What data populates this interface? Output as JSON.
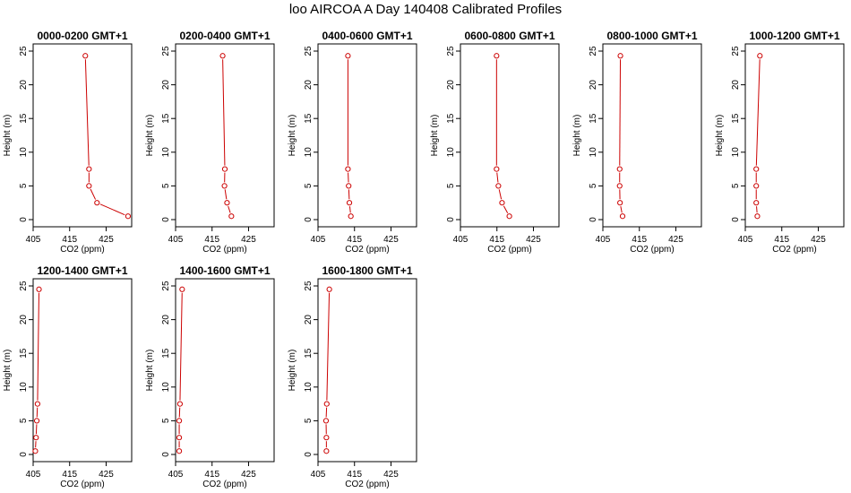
{
  "page_title": "loo AIRCOA A  Day 140408  Calibrated Profiles",
  "colors": {
    "line": "#cc0000",
    "point": "#cc0000",
    "axis": "#000000"
  },
  "chart_data": [
    {
      "type": "line",
      "title": "0000-0200 GMT+1",
      "xlabel": "CO2 (ppm)",
      "ylabel": "Height (m)",
      "xlim": [
        405,
        432
      ],
      "ylim": [
        0,
        25
      ],
      "xticks": [
        405,
        415,
        425
      ],
      "yticks": [
        0,
        5,
        10,
        15,
        20,
        25
      ],
      "x": [
        431.0,
        422.5,
        420.3,
        420.3,
        419.3
      ],
      "y": [
        0.5,
        2.5,
        5,
        7.5,
        24.3
      ]
    },
    {
      "type": "line",
      "title": "0200-0400 GMT+1",
      "xlabel": "CO2 (ppm)",
      "ylabel": "Height (m)",
      "xlim": [
        405,
        432
      ],
      "ylim": [
        0,
        25
      ],
      "xticks": [
        405,
        415,
        425
      ],
      "yticks": [
        0,
        5,
        10,
        15,
        20,
        25
      ],
      "x": [
        420.3,
        419.1,
        418.4,
        418.5,
        417.9
      ],
      "y": [
        0.5,
        2.5,
        5,
        7.5,
        24.3
      ]
    },
    {
      "type": "line",
      "title": "0400-0600 GMT+1",
      "xlabel": "CO2 (ppm)",
      "ylabel": "Height (m)",
      "xlim": [
        405,
        432
      ],
      "ylim": [
        0,
        25
      ],
      "xticks": [
        405,
        415,
        425
      ],
      "yticks": [
        0,
        5,
        10,
        15,
        20,
        25
      ],
      "x": [
        414.0,
        413.6,
        413.4,
        413.2,
        413.2
      ],
      "y": [
        0.5,
        2.5,
        5,
        7.5,
        24.3
      ]
    },
    {
      "type": "line",
      "title": "0600-0800 GMT+1",
      "xlabel": "CO2 (ppm)",
      "ylabel": "Height (m)",
      "xlim": [
        405,
        432
      ],
      "ylim": [
        0,
        25
      ],
      "xticks": [
        405,
        415,
        425
      ],
      "yticks": [
        0,
        5,
        10,
        15,
        20,
        25
      ],
      "x": [
        418.4,
        416.4,
        415.4,
        414.9,
        414.9
      ],
      "y": [
        0.5,
        2.5,
        5,
        7.5,
        24.3
      ]
    },
    {
      "type": "line",
      "title": "0800-1000 GMT+1",
      "xlabel": "CO2 (ppm)",
      "ylabel": "Height (m)",
      "xlim": [
        405,
        432
      ],
      "ylim": [
        0,
        25
      ],
      "xticks": [
        405,
        415,
        425
      ],
      "yticks": [
        0,
        5,
        10,
        15,
        20,
        25
      ],
      "x": [
        410.4,
        409.7,
        409.6,
        409.6,
        409.8
      ],
      "y": [
        0.5,
        2.5,
        5,
        7.5,
        24.3
      ]
    },
    {
      "type": "line",
      "title": "1000-1200 GMT+1",
      "xlabel": "CO2 (ppm)",
      "ylabel": "Height (m)",
      "xlim": [
        405,
        432
      ],
      "ylim": [
        0,
        25
      ],
      "xticks": [
        405,
        415,
        425
      ],
      "yticks": [
        0,
        5,
        10,
        15,
        20,
        25
      ],
      "x": [
        408.3,
        408.0,
        408.0,
        408.0,
        409.0
      ],
      "y": [
        0.5,
        2.5,
        5,
        7.5,
        24.3
      ]
    },
    {
      "type": "line",
      "title": "1200-1400 GMT+1",
      "xlabel": "CO2 (ppm)",
      "ylabel": "Height (m)",
      "xlim": [
        405,
        432
      ],
      "ylim": [
        0,
        25
      ],
      "xticks": [
        405,
        415,
        425
      ],
      "yticks": [
        0,
        5,
        10,
        15,
        20,
        25
      ],
      "x": [
        405.6,
        405.8,
        406.0,
        406.2,
        406.6
      ],
      "y": [
        0.5,
        2.5,
        5,
        7.5,
        24.5
      ]
    },
    {
      "type": "line",
      "title": "1400-1600 GMT+1",
      "xlabel": "CO2 (ppm)",
      "ylabel": "Height (m)",
      "xlim": [
        405,
        432
      ],
      "ylim": [
        0,
        25
      ],
      "xticks": [
        405,
        415,
        425
      ],
      "yticks": [
        0,
        5,
        10,
        15,
        20,
        25
      ],
      "x": [
        406.0,
        406.0,
        406.0,
        406.2,
        406.8
      ],
      "y": [
        0.5,
        2.5,
        5,
        7.5,
        24.5
      ]
    },
    {
      "type": "line",
      "title": "1600-1800 GMT+1",
      "xlabel": "CO2 (ppm)",
      "ylabel": "Height (m)",
      "xlim": [
        405,
        432
      ],
      "ylim": [
        0,
        25
      ],
      "xticks": [
        405,
        415,
        425
      ],
      "yticks": [
        0,
        5,
        10,
        15,
        20,
        25
      ],
      "x": [
        407.3,
        407.3,
        407.2,
        407.4,
        408.1
      ],
      "y": [
        0.5,
        2.5,
        5,
        7.5,
        24.5
      ]
    }
  ]
}
